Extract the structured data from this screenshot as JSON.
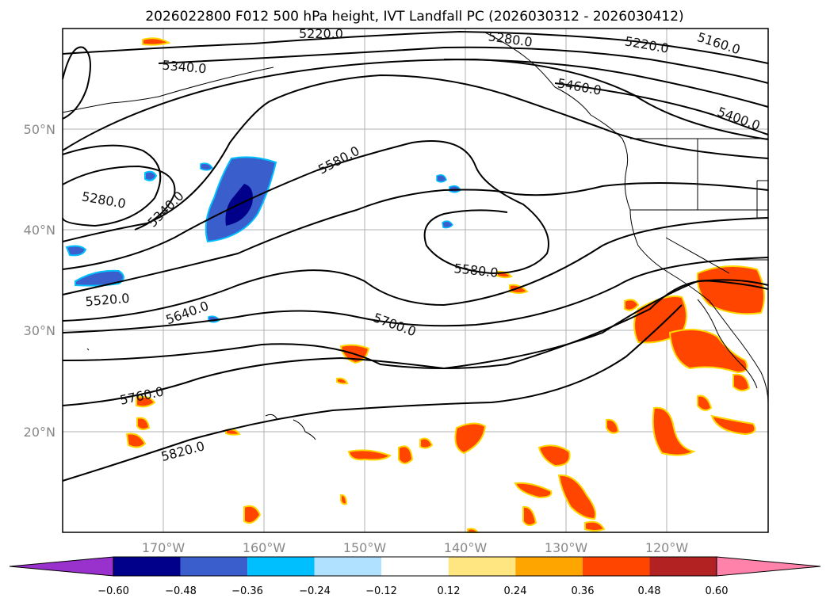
{
  "title": "2026022800 F012 500 hPa height, IVT Landfall PC (2026030312 - 2026030412)",
  "lat_ticks": [
    "50°N",
    "40°N",
    "30°N",
    "20°N"
  ],
  "lon_ticks": [
    "170°W",
    "160°W",
    "150°W",
    "140°W",
    "130°W",
    "120°W"
  ],
  "contour_labels": [
    "5220.0",
    "5280.0",
    "5160.0",
    "5220.0",
    "5340.0",
    "5460.0",
    "5400.0",
    "5580.0",
    "5280.0",
    "5340.0",
    "5580.0",
    "5520.0",
    "5640.0",
    "5700.0",
    "5760.0",
    "5820.0"
  ],
  "colorbar": {
    "ticks": [
      "−0.60",
      "−0.48",
      "−0.36",
      "−0.24",
      "−0.12",
      "0.12",
      "0.24",
      "0.36",
      "0.48",
      "0.60"
    ],
    "colors": [
      "#9932cc",
      "#00008b",
      "#3a5fcd",
      "#00bfff",
      "#b0e2ff",
      "#ffffff",
      "#ffe680",
      "#ffa500",
      "#ff4500",
      "#b22222",
      "#ff82ab"
    ]
  },
  "colors": {
    "neg_dark": "#00008b",
    "neg_mid": "#3a5fcd",
    "neg_light": "#00bfff",
    "pos_orange": "#ff4500",
    "pos_yellow": "#ffd700"
  }
}
